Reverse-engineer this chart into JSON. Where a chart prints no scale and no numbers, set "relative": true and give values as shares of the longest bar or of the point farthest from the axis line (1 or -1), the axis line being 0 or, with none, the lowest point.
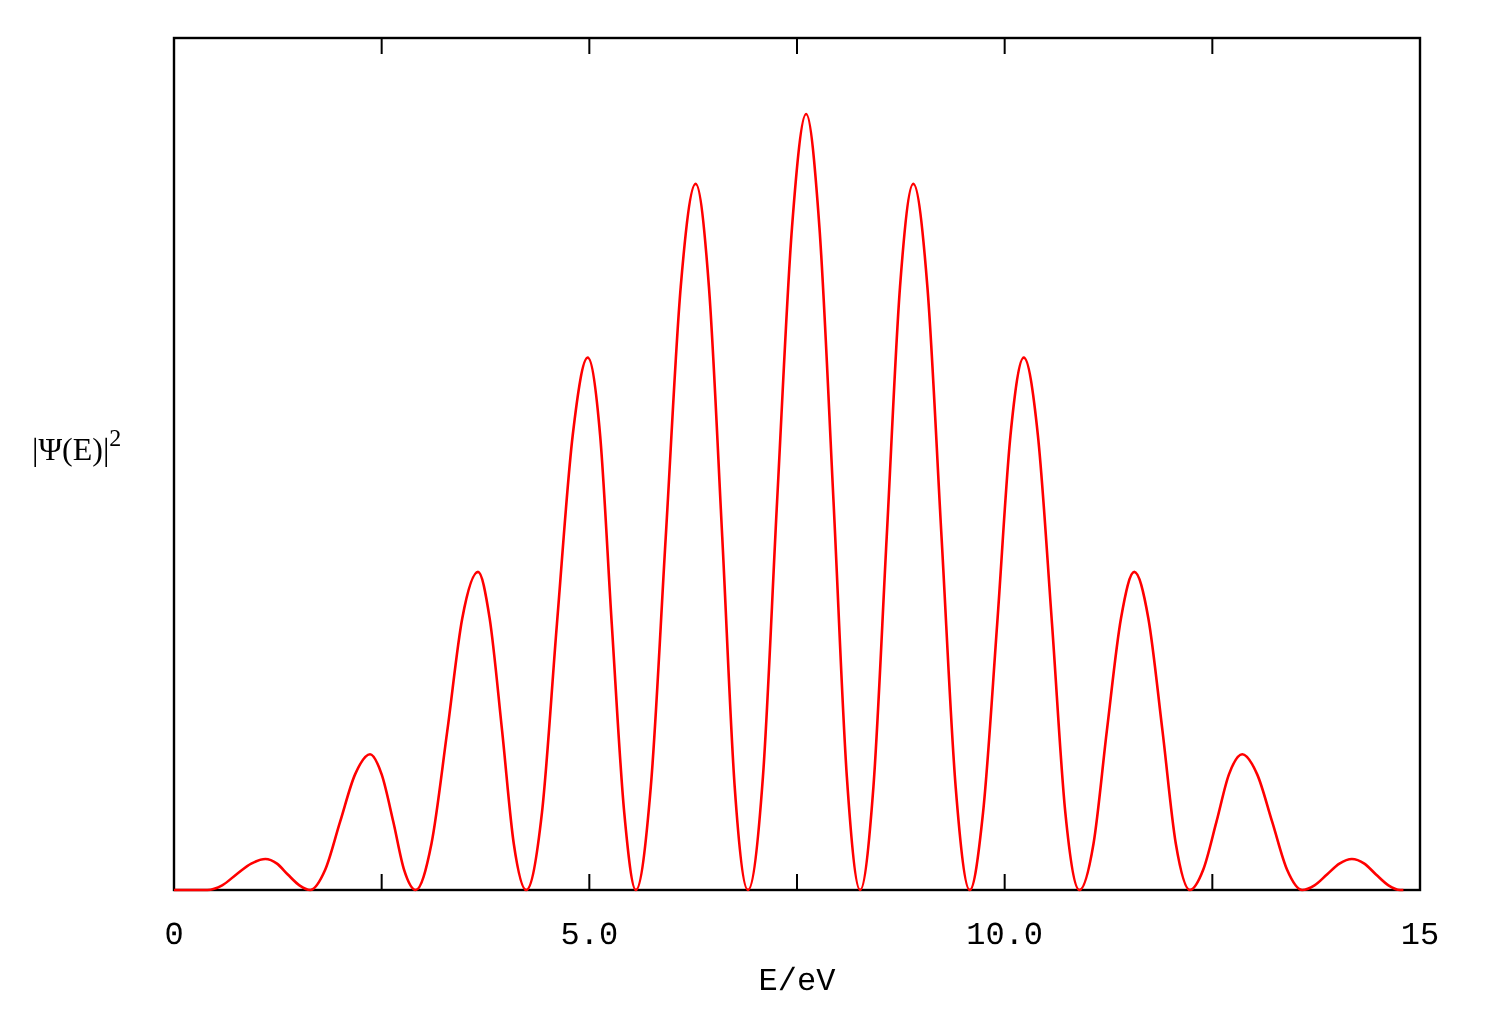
{
  "chart_data": {
    "type": "line",
    "xlabel": "E/eV",
    "ylabel": "|Ψ(E)|$^{2}$",
    "relative": true,
    "xlim": [
      0,
      15
    ],
    "xticks": [
      0,
      {
        "value": 2.5,
        "label": null
      },
      {
        "value": 5,
        "label": "5.0"
      },
      {
        "value": 7.5,
        "label": null
      },
      {
        "value": 10,
        "label": "10.0"
      },
      {
        "value": 12.5,
        "label": null
      },
      15
    ],
    "grid": false,
    "marker": "none",
    "line_style": "solid",
    "series": [
      {
        "color": "#ff0000",
        "x": [
          0,
          0.4,
          0.58,
          0.75,
          0.93,
          1.1,
          1.24,
          1.37,
          1.51,
          1.64,
          1.82,
          2.0,
          2.18,
          2.36,
          2.5,
          2.64,
          2.77,
          2.91,
          3.1,
          3.29,
          3.47,
          3.66,
          3.8,
          3.95,
          4.09,
          4.24,
          4.43,
          4.61,
          4.8,
          4.98,
          5.13,
          5.27,
          5.42,
          5.56,
          5.74,
          5.92,
          6.1,
          6.28,
          6.44,
          6.6,
          6.75,
          6.91,
          7.09,
          7.26,
          7.44,
          7.61,
          7.77,
          7.94,
          8.1,
          8.26,
          8.42,
          8.58,
          8.74,
          8.9,
          9.07,
          9.24,
          9.41,
          9.58,
          9.74,
          9.91,
          10.07,
          10.23,
          10.4,
          10.57,
          10.73,
          10.9,
          11.07,
          11.23,
          11.4,
          11.56,
          11.73,
          11.9,
          12.06,
          12.23,
          12.39,
          12.55,
          12.7,
          12.86,
          13.04,
          13.22,
          13.4,
          13.58,
          13.73,
          13.88,
          14.03,
          14.18,
          14.33,
          14.47,
          14.62,
          14.76,
          14.8
        ],
        "values": [
          0,
          0,
          0.006,
          0.02,
          0.034,
          0.04,
          0.034,
          0.02,
          0.006,
          0,
          0.026,
          0.088,
          0.149,
          0.175,
          0.149,
          0.088,
          0.026,
          0,
          0.06,
          0.205,
          0.35,
          0.41,
          0.35,
          0.205,
          0.06,
          0,
          0.1,
          0.343,
          0.586,
          0.686,
          0.586,
          0.343,
          0.1,
          0,
          0.133,
          0.455,
          0.777,
          0.91,
          0.777,
          0.455,
          0.133,
          0,
          0.146,
          0.5,
          0.854,
          1,
          0.854,
          0.5,
          0.146,
          0,
          0.133,
          0.455,
          0.777,
          0.91,
          0.777,
          0.455,
          0.133,
          0,
          0.1,
          0.343,
          0.586,
          0.686,
          0.586,
          0.343,
          0.1,
          0,
          0.06,
          0.205,
          0.35,
          0.41,
          0.35,
          0.205,
          0.06,
          0,
          0.026,
          0.088,
          0.149,
          0.175,
          0.149,
          0.088,
          0.026,
          0,
          0.006,
          0.02,
          0.034,
          0.04,
          0.034,
          0.02,
          0.006,
          0,
          0
        ]
      }
    ]
  }
}
